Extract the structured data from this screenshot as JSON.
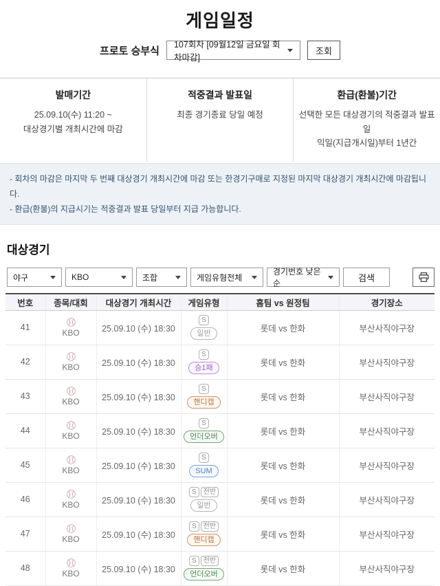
{
  "page": {
    "title": "게임일정"
  },
  "round_selector": {
    "label": "프로토 승부식",
    "value": "107회차 [09월12일 금요일 회차마감]",
    "button": "조회"
  },
  "info_columns": [
    {
      "title": "발매기간",
      "lines": [
        "25.09.10(수) 11:20 ~",
        "대상경기별 개최시간에 마감"
      ]
    },
    {
      "title": "적중결과 발표일",
      "lines": [
        "최종 경기종료 당일 예정"
      ]
    },
    {
      "title": "환급(환불)기간",
      "lines": [
        "선택한 모든 대상경기의 적중결과 발표일",
        "익일(지급개시일)부터 1년간"
      ]
    }
  ],
  "notices": [
    "- 회차의 마감은 마지막 두 번째 대상경기 개최시간에 마감 또는 한경기구매로 지정된 마지막 대상경기 개최시간에 마감됩니다.",
    "- 환급(환불)의 지급시기는 적중결과 발표 당일부터 지급 가능합니다."
  ],
  "section": {
    "title": "대상경기"
  },
  "filters": {
    "sport": "야구",
    "league": "KBO",
    "combo": "조합",
    "game_type": "게임유형전체",
    "sort": "경기번호 낮은순",
    "search_label": "검색",
    "print_icon": "printer-icon"
  },
  "type_colors": {
    "gray": {
      "fg": "#9a9a9a",
      "bg": "#ffffff",
      "border": "#b5b5b5"
    },
    "purple": {
      "fg": "#9c63cf",
      "bg": "#fbf7fe",
      "border": "#b98ddb"
    },
    "orange": {
      "fg": "#c0763a",
      "bg": "#fdf7f0",
      "border": "#cf9263"
    },
    "green": {
      "fg": "#4c8a50",
      "bg": "#f5faf5",
      "border": "#6fa873"
    },
    "blue": {
      "fg": "#4d7fc0",
      "bg": "#f4f8fd",
      "border": "#7ba3d4"
    }
  },
  "table": {
    "headers": [
      "번호",
      "종목/대회",
      "대상경기 개최시간",
      "게임유형",
      "홈팀  vs  원정팀",
      "경기장소"
    ],
    "rows": [
      {
        "no": "41",
        "league": "KBO",
        "time": "25.09.10 (수) 18:30",
        "s_badge": "S",
        "half": "",
        "type": "일반",
        "type_color": "gray",
        "teams": "롯데  vs  한화",
        "venue": "부산사직야구장"
      },
      {
        "no": "42",
        "league": "KBO",
        "time": "25.09.10 (수) 18:30",
        "s_badge": "S",
        "half": "",
        "type": "승1패",
        "type_color": "purple",
        "teams": "롯데  vs  한화",
        "venue": "부산사직야구장"
      },
      {
        "no": "43",
        "league": "KBO",
        "time": "25.09.10 (수) 18:30",
        "s_badge": "S",
        "half": "",
        "type": "핸디캡",
        "type_color": "orange",
        "teams": "롯데  vs  한화",
        "venue": "부산사직야구장"
      },
      {
        "no": "44",
        "league": "KBO",
        "time": "25.09.10 (수) 18:30",
        "s_badge": "S",
        "half": "",
        "type": "언더오버",
        "type_color": "green",
        "teams": "롯데  vs  한화",
        "venue": "부산사직야구장"
      },
      {
        "no": "45",
        "league": "KBO",
        "time": "25.09.10 (수) 18:30",
        "s_badge": "S",
        "half": "",
        "type": "SUM",
        "type_color": "blue",
        "teams": "롯데  vs  한화",
        "venue": "부산사직야구장"
      },
      {
        "no": "46",
        "league": "KBO",
        "time": "25.09.10 (수) 18:30",
        "s_badge": "S",
        "half": "전반",
        "type": "일반",
        "type_color": "gray",
        "teams": "롯데  vs  한화",
        "venue": "부산사직야구장"
      },
      {
        "no": "47",
        "league": "KBO",
        "time": "25.09.10 (수) 18:30",
        "s_badge": "S",
        "half": "전반",
        "type": "핸디캡",
        "type_color": "orange",
        "teams": "롯데  vs  한화",
        "venue": "부산사직야구장"
      },
      {
        "no": "48",
        "league": "KBO",
        "time": "25.09.10 (수) 18:30",
        "s_badge": "S",
        "half": "전반",
        "type": "언더오버",
        "type_color": "green",
        "teams": "롯데  vs  한화",
        "venue": "부산사직야구장"
      }
    ]
  }
}
